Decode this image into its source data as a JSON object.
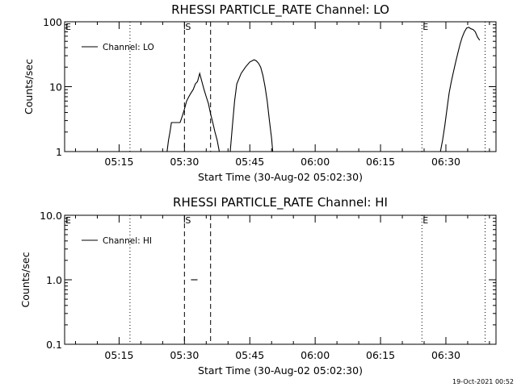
{
  "chart_data": [
    {
      "type": "line",
      "title": "RHESSI PARTICLE_RATE Channel: LO",
      "xlabel": "Start Time (30-Aug-02 05:02:30)",
      "ylabel": "Counts/sec",
      "y_scale": "log",
      "ylim": [
        1,
        100
      ],
      "y_ticks": [
        "1",
        "10",
        "100"
      ],
      "x_ticks": [
        "05:15",
        "05:30",
        "05:45",
        "06:00",
        "06:15",
        "06:30"
      ],
      "xlim": [
        "05:02:30",
        "06:41:30"
      ],
      "legend": {
        "position": "top-left"
      },
      "series": [
        {
          "name": "Channel: LO",
          "segments": [
            [
              [
                "05:26:00",
                1
              ],
              [
                "05:26:20",
                1.5
              ],
              [
                "05:26:40",
                2
              ],
              [
                "05:27:00",
                2.8
              ],
              [
                "05:28:00",
                2.8
              ],
              [
                "05:29:00",
                2.8
              ],
              [
                "05:29:30",
                3.5
              ],
              [
                "05:30:00",
                4.5
              ],
              [
                "05:30:30",
                6
              ],
              [
                "05:31:00",
                7
              ],
              [
                "05:31:30",
                8
              ],
              [
                "05:32:00",
                9
              ],
              [
                "05:32:30",
                11
              ],
              [
                "05:33:00",
                12
              ],
              [
                "05:33:30",
                16
              ],
              [
                "05:34:00",
                12
              ],
              [
                "05:34:30",
                9
              ],
              [
                "05:35:00",
                7
              ],
              [
                "05:35:30",
                5.5
              ],
              [
                "05:36:00",
                3.8
              ],
              [
                "05:36:30",
                2.8
              ],
              [
                "05:37:00",
                2
              ],
              [
                "05:37:30",
                1.5
              ],
              [
                "05:38:00",
                1
              ]
            ],
            [
              [
                "05:40:30",
                1
              ],
              [
                "05:41:00",
                2.5
              ],
              [
                "05:41:30",
                6
              ],
              [
                "05:42:00",
                11
              ],
              [
                "05:43:00",
                16
              ],
              [
                "05:44:00",
                20
              ],
              [
                "05:45:00",
                24
              ],
              [
                "05:46:00",
                26
              ],
              [
                "05:46:30",
                25
              ],
              [
                "05:47:00",
                23
              ],
              [
                "05:47:30",
                20
              ],
              [
                "05:48:00",
                15
              ],
              [
                "05:48:30",
                10
              ],
              [
                "05:49:00",
                6
              ],
              [
                "05:49:30",
                3
              ],
              [
                "05:50:00",
                1.6
              ],
              [
                "05:50:15",
                1
              ]
            ],
            [
              [
                "06:28:45",
                1
              ],
              [
                "06:29:15",
                1.5
              ],
              [
                "06:29:45",
                2.5
              ],
              [
                "06:30:15",
                4.5
              ],
              [
                "06:30:45",
                8
              ],
              [
                "06:31:15",
                12
              ],
              [
                "06:31:45",
                17
              ],
              [
                "06:32:15",
                24
              ],
              [
                "06:32:45",
                33
              ],
              [
                "06:33:15",
                45
              ],
              [
                "06:33:45",
                58
              ],
              [
                "06:34:15",
                70
              ],
              [
                "06:34:45",
                80
              ],
              [
                "06:35:15",
                82
              ],
              [
                "06:35:45",
                78
              ],
              [
                "06:36:15",
                76
              ],
              [
                "06:36:45",
                70
              ],
              [
                "06:37:15",
                58
              ],
              [
                "06:37:45",
                52
              ]
            ]
          ]
        }
      ],
      "annotations": [
        {
          "label": "E",
          "x": "05:02:30",
          "style": "letter"
        },
        {
          "label": "",
          "x": "05:17:30",
          "style": "dotted"
        },
        {
          "label": "S",
          "x": "05:30:00",
          "style": "dashed"
        },
        {
          "label": "",
          "x": "05:36:00",
          "style": "dashed"
        },
        {
          "label": "E",
          "x": "06:24:30",
          "style": "dotted"
        },
        {
          "label": "",
          "x": "06:39:00",
          "style": "dotted"
        }
      ]
    },
    {
      "type": "line",
      "title": "RHESSI PARTICLE_RATE Channel: HI",
      "xlabel": "Start Time (30-Aug-02 05:02:30)",
      "ylabel": "Counts/sec",
      "y_scale": "log",
      "ylim": [
        0.1,
        10
      ],
      "y_ticks": [
        "0.1",
        "1.0",
        "10.0"
      ],
      "x_ticks": [
        "05:15",
        "05:30",
        "05:45",
        "06:00",
        "06:15",
        "06:30"
      ],
      "xlim": [
        "05:02:30",
        "06:41:30"
      ],
      "legend": {
        "position": "top-left"
      },
      "series": [
        {
          "name": "Channel: HI",
          "segments": [
            [
              [
                "05:31:30",
                1
              ],
              [
                "05:33:00",
                1
              ]
            ]
          ]
        }
      ],
      "annotations": [
        {
          "label": "E",
          "x": "05:02:30",
          "style": "letter"
        },
        {
          "label": "",
          "x": "05:17:30",
          "style": "dotted"
        },
        {
          "label": "S",
          "x": "05:30:00",
          "style": "dashed"
        },
        {
          "label": "",
          "x": "05:36:00",
          "style": "dashed"
        },
        {
          "label": "E",
          "x": "06:24:30",
          "style": "dotted"
        },
        {
          "label": "",
          "x": "06:39:00",
          "style": "dotted"
        }
      ]
    }
  ],
  "footer": {
    "timestamp": "19-Oct-2021 00:52"
  }
}
